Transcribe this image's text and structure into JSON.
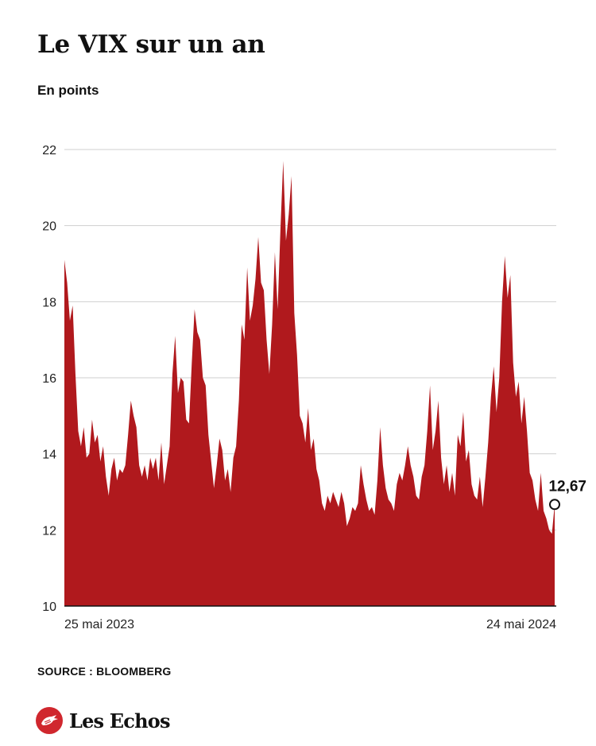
{
  "header": {
    "title": "Le VIX sur un an",
    "subtitle": "En points"
  },
  "chart_data": {
    "type": "area",
    "title": "Le VIX sur un an",
    "ylabel": "En points",
    "xlabel": "",
    "ylim": [
      10,
      22
    ],
    "yticks": [
      10,
      12,
      14,
      16,
      18,
      20,
      22
    ],
    "ytick_labels": [
      "10",
      "12",
      "14",
      "16",
      "18",
      "20",
      "22"
    ],
    "grid": true,
    "x_start_label": "25 mai 2023",
    "x_end_label": "24 mai 2024",
    "color": "#b0191d",
    "last_value_label": "12,67",
    "values": [
      19.1,
      18.5,
      17.5,
      17.9,
      16.1,
      14.6,
      14.2,
      14.7,
      13.9,
      14.0,
      14.9,
      14.3,
      14.5,
      13.8,
      14.2,
      13.4,
      12.9,
      13.6,
      13.9,
      13.3,
      13.6,
      13.5,
      13.7,
      14.5,
      15.4,
      15.0,
      14.7,
      13.7,
      13.4,
      13.7,
      13.3,
      13.9,
      13.6,
      13.9,
      13.3,
      14.3,
      13.2,
      13.7,
      14.2,
      16.1,
      17.1,
      15.6,
      16.0,
      15.9,
      14.9,
      14.8,
      16.4,
      17.8,
      17.2,
      17.0,
      16.0,
      15.8,
      14.5,
      13.8,
      13.1,
      13.7,
      14.4,
      14.1,
      13.3,
      13.6,
      13.0,
      13.9,
      14.2,
      15.4,
      17.4,
      17.0,
      18.9,
      17.5,
      17.9,
      18.6,
      19.7,
      18.5,
      18.3,
      17.0,
      16.1,
      17.4,
      19.3,
      17.8,
      19.9,
      21.7,
      19.6,
      20.3,
      21.3,
      17.7,
      16.6,
      15.0,
      14.8,
      14.3,
      15.2,
      14.1,
      14.4,
      13.6,
      13.3,
      12.7,
      12.5,
      12.9,
      12.7,
      13.0,
      12.8,
      12.6,
      13.0,
      12.7,
      12.1,
      12.3,
      12.6,
      12.5,
      12.7,
      13.7,
      13.2,
      12.8,
      12.5,
      12.6,
      12.4,
      13.3,
      14.7,
      13.7,
      13.1,
      12.8,
      12.7,
      12.5,
      13.2,
      13.5,
      13.3,
      13.7,
      14.2,
      13.7,
      13.4,
      12.9,
      12.8,
      13.4,
      13.7,
      14.6,
      15.8,
      14.1,
      14.6,
      15.4,
      13.9,
      13.2,
      13.7,
      13.0,
      13.5,
      12.9,
      14.5,
      14.2,
      15.1,
      13.8,
      14.1,
      13.2,
      12.9,
      12.8,
      13.4,
      12.6,
      13.4,
      14.3,
      15.5,
      16.3,
      15.1,
      16.0,
      18.0,
      19.2,
      18.1,
      18.7,
      16.4,
      15.5,
      15.9,
      14.8,
      15.5,
      14.6,
      13.5,
      13.3,
      12.8,
      12.5,
      13.5,
      12.5,
      12.3,
      12.0,
      11.9,
      12.67
    ]
  },
  "footer": {
    "source": "SOURCE : BLOOMBERG",
    "brand": "Les Echos"
  }
}
